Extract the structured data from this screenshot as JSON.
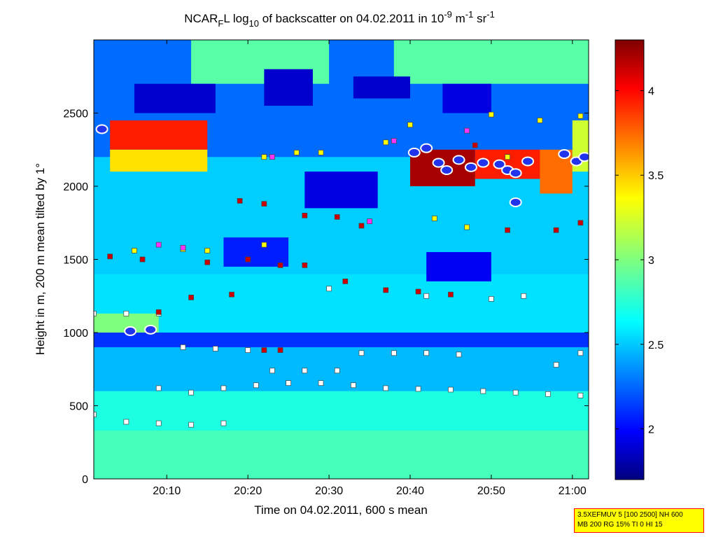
{
  "chart_data": {
    "type": "heatmap",
    "title": {
      "prefix": "NCAR",
      "prefix_sub": "F",
      "part2": "L log",
      "part2_sub": "10",
      "part3": " of backscatter on 04.02.2011 in 10",
      "sup1": "-9",
      "part4": " m",
      "sup2": "-1",
      "part5": " sr",
      "sup3": "-1"
    },
    "xlabel": "Time on 04.02.2011, 600 s mean",
    "ylabel": "Height in m, 200 m mean tilted by 1°",
    "x_range_minutes": [
      1201,
      1262
    ],
    "x_ticks": [
      {
        "value": 1210,
        "label": "20:10"
      },
      {
        "value": 1220,
        "label": "20:20"
      },
      {
        "value": 1230,
        "label": "20:30"
      },
      {
        "value": 1240,
        "label": "20:40"
      },
      {
        "value": 1250,
        "label": "20:50"
      },
      {
        "value": 1260,
        "label": "21:00"
      }
    ],
    "ylim": [
      0,
      3000
    ],
    "y_ticks": [
      0,
      500,
      1000,
      1500,
      2000,
      2500
    ],
    "colorbar": {
      "range": [
        1.7,
        4.3
      ],
      "ticks": [
        2,
        2.5,
        3,
        3.5,
        4
      ],
      "colormap": "jet"
    },
    "regions": [
      {
        "x": [
          1201,
          1262
        ],
        "y": [
          0,
          330
        ],
        "value": 2.85
      },
      {
        "x": [
          1201,
          1262
        ],
        "y": [
          330,
          600
        ],
        "value": 2.75
      },
      {
        "x": [
          1201,
          1262
        ],
        "y": [
          600,
          900
        ],
        "value": 2.5
      },
      {
        "x": [
          1201,
          1262
        ],
        "y": [
          900,
          1000
        ],
        "value": 2.15
      },
      {
        "x": [
          1201,
          1262
        ],
        "y": [
          1000,
          1400
        ],
        "value": 2.6
      },
      {
        "x": [
          1201,
          1262
        ],
        "y": [
          1400,
          2200
        ],
        "value": 2.55
      },
      {
        "x": [
          1201,
          1262
        ],
        "y": [
          2200,
          3000
        ],
        "value": 2.3
      },
      {
        "x": [
          1201,
          1209
        ],
        "y": [
          1000,
          1130
        ],
        "value": 3.0
      },
      {
        "x": [
          1203,
          1215
        ],
        "y": [
          2250,
          2450
        ],
        "value": 3.9
      },
      {
        "x": [
          1203,
          1215
        ],
        "y": [
          2100,
          2250
        ],
        "value": 3.4
      },
      {
        "x": [
          1213,
          1230
        ],
        "y": [
          2700,
          3000
        ],
        "value": 2.9
      },
      {
        "x": [
          1238,
          1262
        ],
        "y": [
          2700,
          3000
        ],
        "value": 2.9
      },
      {
        "x": [
          1206,
          1216
        ],
        "y": [
          2500,
          2700
        ],
        "value": 1.9
      },
      {
        "x": [
          1222,
          1228
        ],
        "y": [
          2550,
          2800
        ],
        "value": 1.9
      },
      {
        "x": [
          1233,
          1240
        ],
        "y": [
          2600,
          2750
        ],
        "value": 1.9
      },
      {
        "x": [
          1244,
          1250
        ],
        "y": [
          2500,
          2700
        ],
        "value": 1.95
      },
      {
        "x": [
          1227,
          1236
        ],
        "y": [
          1850,
          2100
        ],
        "value": 1.95
      },
      {
        "x": [
          1217,
          1225
        ],
        "y": [
          1450,
          1650
        ],
        "value": 2.1
      },
      {
        "x": [
          1242,
          1250
        ],
        "y": [
          1350,
          1550
        ],
        "value": 2.0
      },
      {
        "x": [
          1240,
          1248
        ],
        "y": [
          2000,
          2250
        ],
        "value": 4.2
      },
      {
        "x": [
          1248,
          1256
        ],
        "y": [
          2050,
          2250
        ],
        "value": 3.9
      },
      {
        "x": [
          1256,
          1260
        ],
        "y": [
          1950,
          2250
        ],
        "value": 3.7
      },
      {
        "x": [
          1260,
          1262
        ],
        "y": [
          2100,
          2450
        ],
        "value": 3.2
      }
    ],
    "markers": {
      "white": [
        [
          1201,
          1130
        ],
        [
          1205,
          1130
        ],
        [
          1209,
          1130
        ],
        [
          1212,
          900
        ],
        [
          1216,
          890
        ],
        [
          1220,
          880
        ],
        [
          1223,
          740
        ],
        [
          1227,
          740
        ],
        [
          1231,
          740
        ],
        [
          1234,
          860
        ],
        [
          1238,
          860
        ],
        [
          1242,
          860
        ],
        [
          1246,
          850
        ],
        [
          1230,
          1300
        ],
        [
          1242,
          1250
        ],
        [
          1250,
          1230
        ],
        [
          1254,
          1250
        ],
        [
          1209,
          620
        ],
        [
          1213,
          590
        ],
        [
          1217,
          620
        ],
        [
          1221,
          640
        ],
        [
          1225,
          655
        ],
        [
          1229,
          655
        ],
        [
          1233,
          640
        ],
        [
          1237,
          620
        ],
        [
          1241,
          615
        ],
        [
          1245,
          610
        ],
        [
          1249,
          600
        ],
        [
          1253,
          590
        ],
        [
          1257,
          580
        ],
        [
          1261,
          570
        ],
        [
          1201,
          440
        ],
        [
          1205,
          390
        ],
        [
          1209,
          380
        ],
        [
          1213,
          370
        ],
        [
          1217,
          380
        ],
        [
          1258,
          780
        ],
        [
          1261,
          860
        ]
      ],
      "red": [
        [
          1203,
          1520
        ],
        [
          1207,
          1500
        ],
        [
          1215,
          1480
        ],
        [
          1220,
          1500
        ],
        [
          1224,
          1460
        ],
        [
          1227,
          1460
        ],
        [
          1218,
          1260
        ],
        [
          1209,
          1140
        ],
        [
          1213,
          1240
        ],
        [
          1219,
          1900
        ],
        [
          1222,
          1880
        ],
        [
          1227,
          1800
        ],
        [
          1231,
          1790
        ],
        [
          1234,
          1730
        ],
        [
          1232,
          1350
        ],
        [
          1237,
          1290
        ],
        [
          1241,
          1280
        ],
        [
          1245,
          1260
        ],
        [
          1248,
          2280
        ],
        [
          1252,
          1700
        ],
        [
          1258,
          1700
        ],
        [
          1261,
          1750
        ],
        [
          1222,
          880
        ],
        [
          1224,
          880
        ]
      ],
      "yellow": [
        [
          1206,
          1560
        ],
        [
          1212,
          1570
        ],
        [
          1215,
          1560
        ],
        [
          1222,
          1600
        ],
        [
          1222,
          2200
        ],
        [
          1226,
          2230
        ],
        [
          1229,
          2230
        ],
        [
          1240,
          2420
        ],
        [
          1250,
          2490
        ],
        [
          1256,
          2450
        ],
        [
          1261,
          2480
        ],
        [
          1237,
          2300
        ],
        [
          1252,
          2200
        ],
        [
          1243,
          1780
        ],
        [
          1247,
          1720
        ]
      ],
      "magenta": [
        [
          1209,
          1600
        ],
        [
          1212,
          1580
        ],
        [
          1223,
          2200
        ],
        [
          1238,
          2310
        ],
        [
          1247,
          2380
        ],
        [
          1235,
          1760
        ]
      ],
      "blue_ellipses": [
        [
          1202,
          2390
        ],
        [
          1205.5,
          1010
        ],
        [
          1208,
          1020
        ],
        [
          1240.5,
          2230
        ],
        [
          1242,
          2260
        ],
        [
          1243.5,
          2160
        ],
        [
          1244.5,
          2110
        ],
        [
          1246,
          2180
        ],
        [
          1247.5,
          2130
        ],
        [
          1249,
          2160
        ],
        [
          1251,
          2150
        ],
        [
          1252,
          2110
        ],
        [
          1253,
          2090
        ],
        [
          1254.5,
          2170
        ],
        [
          1253,
          1890
        ],
        [
          1259,
          2220
        ],
        [
          1260.5,
          2170
        ],
        [
          1261.5,
          2200
        ]
      ]
    }
  },
  "info_box": {
    "line1": "3.5XEFMUV 5 [100 2500] NH 600",
    "line2": "MB 200 RG 15% TI 0 HI 15"
  }
}
